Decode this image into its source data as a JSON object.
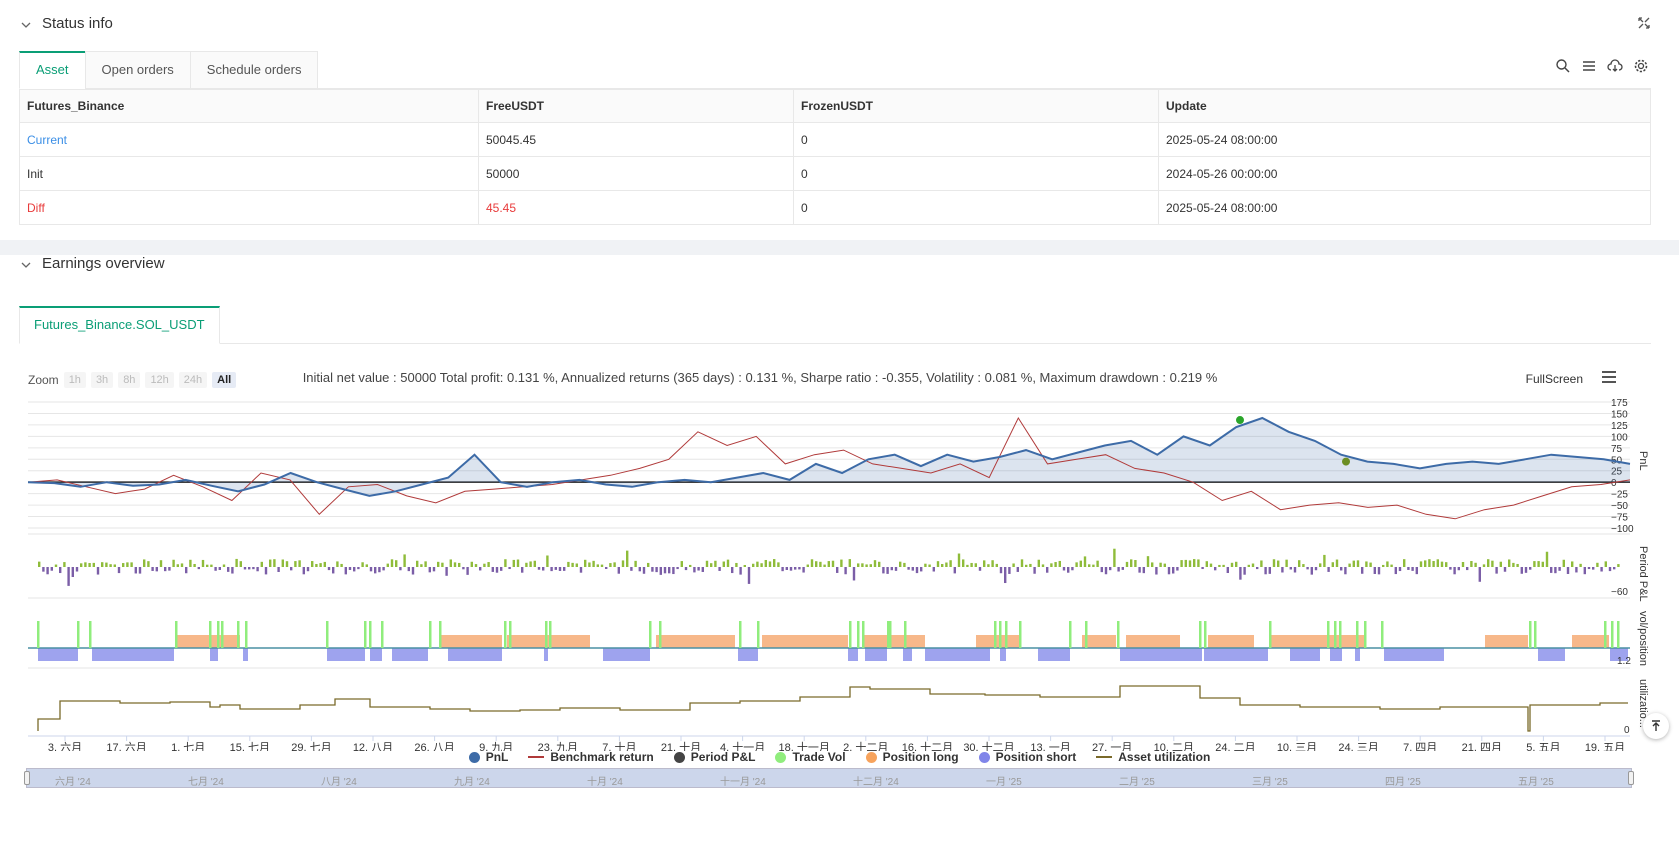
{
  "status": {
    "title": "Status info",
    "tabs": [
      "Asset",
      "Open orders",
      "Schedule orders"
    ],
    "columns": [
      "Futures_Binance",
      "FreeUSDT",
      "FrozenUSDT",
      "Update"
    ],
    "rows": [
      {
        "name": "Current",
        "free": "50045.45",
        "frozen": "0",
        "update": "2025-05-24 08:00:00"
      },
      {
        "name": "Init",
        "free": "50000",
        "frozen": "0",
        "update": "2024-05-26 00:00:00"
      },
      {
        "name": "Diff",
        "free": "45.45",
        "frozen": "0",
        "update": "2025-05-24 08:00:00"
      }
    ]
  },
  "earnings": {
    "title": "Earnings overview",
    "tab": "Futures_Binance.SOL_USDT",
    "summary": "Initial net value : 50000 Total profit: 0.131 %, Annualized returns (365 days) : 0.131 %, Sharpe ratio : -0.355, Volatility : 0.081 %, Maximum drawdown : 0.219 %",
    "fullscreen": "FullScreen",
    "zoom_label": "Zoom",
    "zoom_buttons": [
      "1h",
      "3h",
      "8h",
      "12h",
      "24h",
      "All"
    ],
    "legend": [
      "PnL",
      "Benchmark return",
      "Period P&L",
      "Trade Vol",
      "Position long",
      "Position short",
      "Asset utilization"
    ],
    "navigator_labels": [
      "六月 '24",
      "七月 '24",
      "八月 '24",
      "九月 '24",
      "十月 '24",
      "十一月 '24",
      "十二月 '24",
      "一月 '25",
      "二月 '25",
      "三月 '25",
      "四月 '25",
      "五月 '25"
    ]
  },
  "chart_data": {
    "type": "line",
    "x_ticks": [
      "3. 六月",
      "17. 六月",
      "1. 七月",
      "15. 七月",
      "29. 七月",
      "12. 八月",
      "26. 八月",
      "9. 九月",
      "23. 九月",
      "7. 十月",
      "21. 十月",
      "4. 十一月",
      "18. 十一月",
      "2. 十二月",
      "16. 十二月",
      "30. 十二月",
      "13. 一月",
      "27. 一月",
      "10. 二月",
      "24. 二月",
      "10. 三月",
      "24. 三月",
      "7. 四月",
      "21. 四月",
      "5. 五月",
      "19. 五月"
    ],
    "pnl_yticks": [
      "175",
      "150",
      "125",
      "100",
      "75",
      "50",
      "25",
      "0",
      "-25",
      "-50",
      "-75",
      "-100"
    ],
    "pnl_ylim": [
      -100,
      175
    ],
    "pnl_ylabel": "PnL",
    "period_ylabel": "Period P&L",
    "period_min_label": "-60",
    "vol_ylabel": "vol/position",
    "vol_min_label": "1.2",
    "util_ylabel": "utilizatio...",
    "util_min_label": "0",
    "series": [
      {
        "name": "PnL",
        "color": "#3d6ba7",
        "values": [
          0,
          -2,
          -10,
          0,
          -8,
          -5,
          5,
          -8,
          -20,
          -5,
          20,
          0,
          -15,
          -30,
          -20,
          -5,
          10,
          60,
          0,
          -10,
          0,
          5,
          -5,
          -10,
          0,
          5,
          0,
          10,
          20,
          5,
          40,
          20,
          50,
          60,
          35,
          60,
          45,
          55,
          70,
          50,
          65,
          80,
          90,
          60,
          100,
          80,
          120,
          140,
          110,
          90,
          60,
          45,
          40,
          30,
          40,
          45,
          40,
          50,
          60,
          55,
          50,
          40
        ]
      },
      {
        "name": "Benchmark return",
        "color": "#b03a3a",
        "values": [
          0,
          5,
          -10,
          -25,
          -15,
          15,
          -10,
          -40,
          20,
          5,
          -70,
          -10,
          -5,
          -30,
          -45,
          -20,
          -15,
          -10,
          -5,
          5,
          15,
          30,
          50,
          110,
          80,
          100,
          40,
          60,
          70,
          40,
          30,
          20,
          40,
          10,
          140,
          40,
          50,
          60,
          30,
          20,
          0,
          -40,
          -20,
          -60,
          -50,
          -45,
          -55,
          -50,
          -70,
          -80,
          -60,
          -50,
          -30,
          -10,
          -5,
          5
        ]
      }
    ],
    "markers": [
      {
        "label": "buy",
        "color": "#2aa52a"
      },
      {
        "label": "sell",
        "color": "#6b8e23"
      }
    ]
  }
}
